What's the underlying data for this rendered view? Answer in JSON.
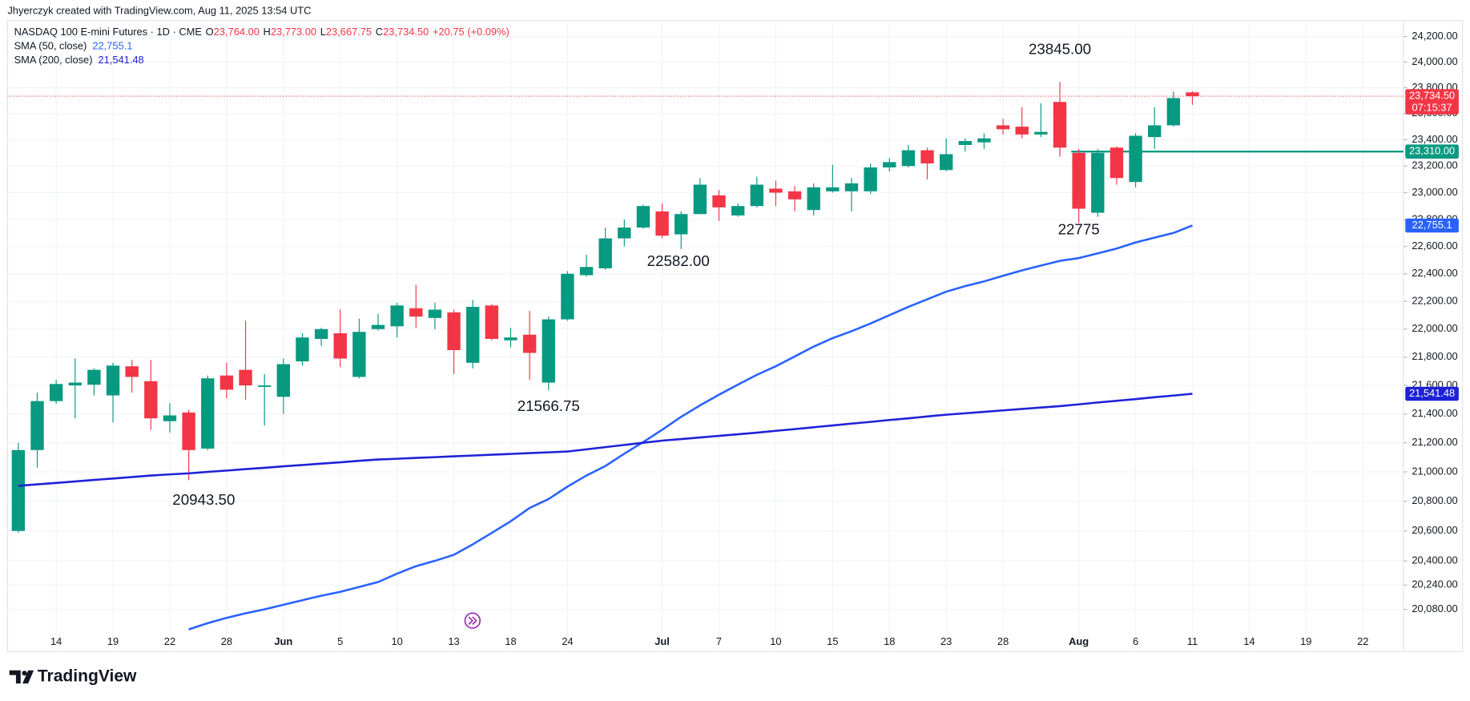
{
  "header": {
    "credit": "Jhyerczyk created with TradingView.com, Aug 11, 2025 13:54 UTC"
  },
  "footer": {
    "brand": "TradingView"
  },
  "chart_data": {
    "type": "candlestick",
    "title": "NASDAQ 100 E-mini Futures · 1D · CME",
    "legend_items": [
      {
        "label": "O",
        "value": "23,764.00"
      },
      {
        "label": "H",
        "value": "23,773.00"
      },
      {
        "label": "L",
        "value": "23,667.75"
      },
      {
        "label": "C",
        "value": "23,734.50"
      }
    ],
    "change": "+20.75 (+0.09%)",
    "categories": [
      null,
      null,
      "14",
      null,
      null,
      "19",
      null,
      null,
      "22",
      null,
      null,
      "28",
      null,
      null,
      "Jun",
      null,
      null,
      "5",
      null,
      null,
      "10",
      null,
      null,
      "13",
      null,
      null,
      "18",
      null,
      null,
      "24",
      null,
      null,
      null,
      null,
      "Jul",
      null,
      null,
      "7",
      null,
      null,
      "10",
      null,
      null,
      "15",
      null,
      null,
      "18",
      null,
      null,
      "23",
      null,
      null,
      "28",
      null,
      null,
      null,
      "Aug",
      null,
      null,
      "6",
      null,
      null,
      "11",
      null,
      null,
      "14",
      null,
      null,
      "19",
      null,
      null,
      "22",
      null,
      null
    ],
    "open": [
      20600,
      21150,
      21490,
      21600,
      21605,
      21530,
      21735,
      21630,
      21350,
      21410,
      21160,
      21670,
      21710,
      21590,
      21520,
      21770,
      21930,
      21970,
      21660,
      22000,
      22020,
      22150,
      22080,
      22120,
      21760,
      22170,
      21920,
      21960,
      21620,
      22070,
      22390,
      22440,
      22660,
      22740,
      22860,
      22690,
      22840,
      22980,
      22830,
      22900,
      23030,
      23010,
      22870,
      23010,
      23010,
      23010,
      23190,
      23200,
      23320,
      23170,
      23360,
      23380,
      23510,
      23500,
      23440,
      23690,
      23300,
      22850,
      23340,
      23080,
      23420,
      23510,
      23764,
      null,
      null,
      null,
      null,
      null,
      null,
      null,
      null,
      null,
      null,
      null
    ],
    "high": [
      21200,
      21550,
      21640,
      21790,
      21720,
      21760,
      21780,
      21780,
      21475,
      21430,
      21670,
      21760,
      22060,
      21680,
      21790,
      21970,
      22010,
      22140,
      22075,
      22110,
      22190,
      22320,
      22190,
      22140,
      22210,
      22180,
      22010,
      22130,
      22090,
      22420,
      22540,
      22740,
      22800,
      22910,
      22920,
      22860,
      23110,
      23020,
      22920,
      23120,
      23090,
      23050,
      23070,
      23210,
      23110,
      23220,
      23260,
      23360,
      23340,
      23410,
      23410,
      23450,
      23560,
      23650,
      23680,
      23845,
      23330,
      23330,
      23350,
      23450,
      23650,
      23770,
      23773,
      null,
      null,
      null,
      null,
      null,
      null,
      null,
      null,
      null,
      null,
      null
    ],
    "low": [
      20590,
      21030,
      21470,
      21370,
      21530,
      21340,
      21550,
      21290,
      21270,
      20943.5,
      21150,
      21510,
      21500,
      21320,
      21400,
      21740,
      21880,
      21730,
      21650,
      21990,
      21940,
      22010,
      22000,
      21680,
      21720,
      21920,
      21870,
      21640,
      21566.75,
      22060,
      22380,
      22430,
      22600,
      22730,
      22660,
      22582,
      22840,
      22790,
      22820,
      22890,
      22900,
      22860,
      22830,
      23000,
      22860,
      22990,
      23160,
      23190,
      23100,
      23160,
      23310,
      23330,
      23440,
      23410,
      23420,
      23270,
      22775,
      22820,
      23060,
      23040,
      23330,
      23500,
      23667.75,
      null,
      null,
      null,
      null,
      null,
      null,
      null,
      null,
      null,
      null,
      null
    ],
    "close": [
      21150,
      21490,
      21610,
      21620,
      21710,
      21740,
      21660,
      21370,
      21390,
      21150,
      21650,
      21570,
      21600,
      21600,
      21750,
      21940,
      22000,
      21790,
      21980,
      22030,
      22170,
      22090,
      22140,
      21850,
      22160,
      21930,
      21940,
      21830,
      22070,
      22400,
      22450,
      22660,
      22740,
      22900,
      22680,
      22840,
      23060,
      22890,
      22900,
      23060,
      23000,
      22950,
      23040,
      23040,
      23070,
      23190,
      23230,
      23320,
      23220,
      23290,
      23390,
      23410,
      23480,
      23440,
      23460,
      23340,
      22880,
      23300,
      23110,
      23430,
      23510,
      23720,
      23734.5,
      null,
      null,
      null,
      null,
      null,
      null,
      null,
      null,
      null,
      null,
      null
    ],
    "up_color": "#089981",
    "down_color": "#f23645",
    "series": [
      {
        "name": "SMA (50, close)",
        "color": "#2962ff",
        "value_label": "22,755.1",
        "values": [
          null,
          null,
          null,
          null,
          null,
          null,
          null,
          null,
          null,
          19950,
          19990,
          20025,
          20055,
          20080,
          20110,
          20140,
          20170,
          20195,
          20228,
          20260,
          20315,
          20365,
          20400,
          20440,
          20510,
          20587,
          20665,
          20755,
          20815,
          20900,
          20975,
          21040,
          21125,
          21205,
          21290,
          21380,
          21460,
          21535,
          21605,
          21675,
          21735,
          21805,
          21875,
          21935,
          21985,
          22040,
          22100,
          22160,
          22215,
          22270,
          22310,
          22345,
          22385,
          22425,
          22460,
          22495,
          22515,
          22550,
          22585,
          22630,
          22665,
          22700,
          22755.1,
          null,
          null,
          null,
          null,
          null,
          null,
          null,
          null,
          null,
          null,
          null
        ]
      },
      {
        "name": "SMA (200, close)",
        "color": "#1e22d6",
        "value_label": "21,541.48",
        "values": [
          20905,
          20915,
          20925,
          20935,
          20945,
          20955,
          20965,
          20975,
          20983,
          20990,
          21000,
          21009,
          21019,
          21028,
          21038,
          21047,
          21057,
          21066,
          21076,
          21085,
          21090,
          21096,
          21101,
          21107,
          21112,
          21118,
          21123,
          21129,
          21134,
          21140,
          21155,
          21170,
          21185,
          21200,
          21215,
          21226,
          21237,
          21248,
          21259,
          21270,
          21283,
          21295,
          21308,
          21320,
          21333,
          21345,
          21358,
          21370,
          21383,
          21395,
          21405,
          21415,
          21425,
          21435,
          21445,
          21455,
          21467,
          21480,
          21492,
          21504,
          21517,
          21529,
          21541.48,
          null,
          null,
          null,
          null,
          null,
          null,
          null,
          null,
          null,
          null,
          null
        ]
      }
    ],
    "last_price": {
      "label": "23,734.50",
      "countdown": "07:15:37"
    },
    "level": {
      "value": 23310,
      "label": "23,310.00",
      "color": "#089981"
    },
    "annotations": [
      "23845.00",
      "22582.00",
      "22775",
      "21566.75",
      "20943.50"
    ],
    "ylim": [
      19806,
      24430
    ],
    "log_scale": true,
    "grid": true,
    "yticks": [
      {
        "value": 24200,
        "label": "24,200.00"
      },
      {
        "value": 24000,
        "label": "24,000.00"
      },
      {
        "value": 23800,
        "label": "23,800.00"
      },
      {
        "value": 23600,
        "label": "23,600.00"
      },
      {
        "value": 23400,
        "label": "23,400.00"
      },
      {
        "value": 23200,
        "label": "23,200.00"
      },
      {
        "value": 23000,
        "label": "23,000.00"
      },
      {
        "value": 22800,
        "label": "22,800.00"
      },
      {
        "value": 22600,
        "label": "22,600.00"
      },
      {
        "value": 22400,
        "label": "22,400.00"
      },
      {
        "value": 22200,
        "label": "22,200.00"
      },
      {
        "value": 22000,
        "label": "22,000.00"
      },
      {
        "value": 21800,
        "label": "21,800.00"
      },
      {
        "value": 21600,
        "label": "21,600.00"
      },
      {
        "value": 21400,
        "label": "21,400.00"
      },
      {
        "value": 21200,
        "label": "21,200.00"
      },
      {
        "value": 21000,
        "label": "21,000.00"
      },
      {
        "value": 20800,
        "label": "20,800.00"
      },
      {
        "value": 20600,
        "label": "20,600.00"
      },
      {
        "value": 20400,
        "label": "20,400.00"
      },
      {
        "value": 20240,
        "label": "20,240.00"
      },
      {
        "value": 20080,
        "label": "20,080.00"
      }
    ]
  }
}
